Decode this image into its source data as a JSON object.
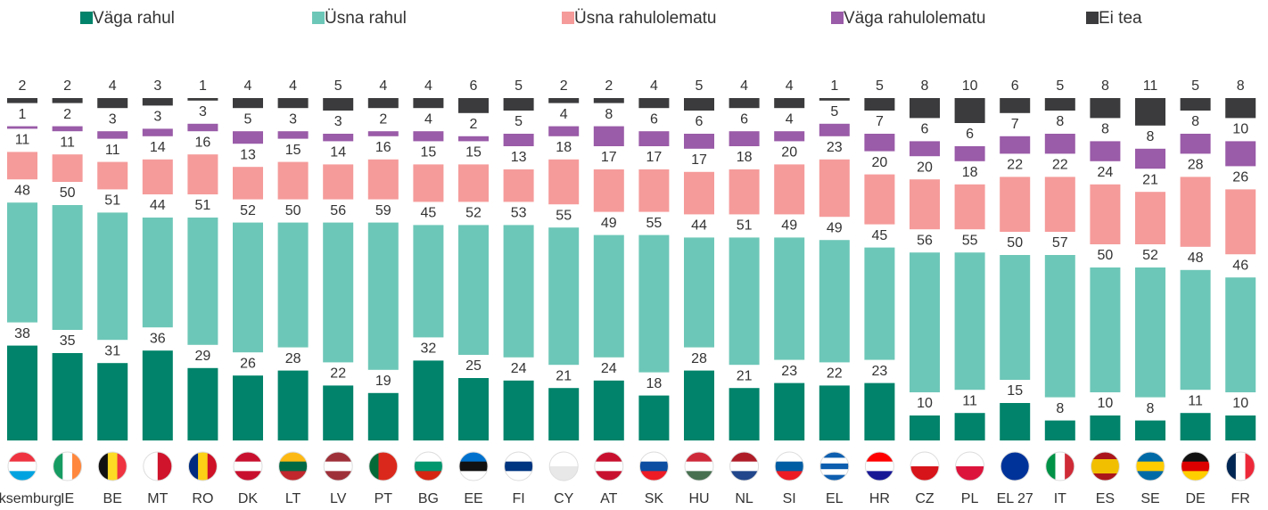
{
  "chart_data": {
    "type": "stacked_bar",
    "categories": [
      "Luksemburg",
      "IE",
      "BE",
      "MT",
      "RO",
      "DK",
      "LT",
      "LV",
      "PT",
      "BG",
      "EE",
      "FI",
      "CY",
      "AT",
      "SK",
      "HU",
      "NL",
      "SI",
      "EL",
      "HR",
      "CZ",
      "PL",
      "EL 27",
      "IT",
      "ES",
      "SE",
      "DE",
      "FR"
    ],
    "series": [
      {
        "name": "Väga rahul",
        "color": "#00836a",
        "values": [
          38,
          35,
          31,
          36,
          29,
          26,
          28,
          22,
          19,
          32,
          25,
          24,
          21,
          24,
          18,
          28,
          21,
          23,
          22,
          23,
          10,
          11,
          15,
          8,
          10,
          8,
          11,
          10
        ]
      },
      {
        "name": "Üsna rahul",
        "color": "#6dc7b8",
        "values": [
          48,
          50,
          51,
          44,
          51,
          52,
          50,
          56,
          59,
          45,
          52,
          53,
          55,
          49,
          55,
          44,
          51,
          49,
          49,
          45,
          56,
          55,
          50,
          57,
          50,
          52,
          48,
          46
        ]
      },
      {
        "name": "Üsna rahulolematu",
        "color": "#f59b9a",
        "values": [
          11,
          11,
          11,
          14,
          16,
          13,
          15,
          14,
          16,
          15,
          15,
          13,
          18,
          17,
          17,
          17,
          18,
          20,
          23,
          20,
          20,
          18,
          22,
          22,
          24,
          21,
          28,
          26
        ]
      },
      {
        "name": "Väga rahulolematu",
        "color": "#9a5ba8",
        "values": [
          1,
          2,
          3,
          3,
          3,
          5,
          3,
          3,
          2,
          4,
          2,
          5,
          4,
          8,
          6,
          6,
          6,
          4,
          5,
          7,
          6,
          6,
          7,
          8,
          8,
          8,
          8,
          10
        ]
      },
      {
        "name": "Ei tea",
        "color": "#3b3b3d",
        "values": [
          2,
          2,
          4,
          3,
          1,
          4,
          4,
          5,
          4,
          4,
          6,
          5,
          2,
          2,
          4,
          5,
          4,
          4,
          1,
          5,
          8,
          10,
          6,
          5,
          8,
          11,
          5,
          8
        ]
      }
    ]
  }
}
